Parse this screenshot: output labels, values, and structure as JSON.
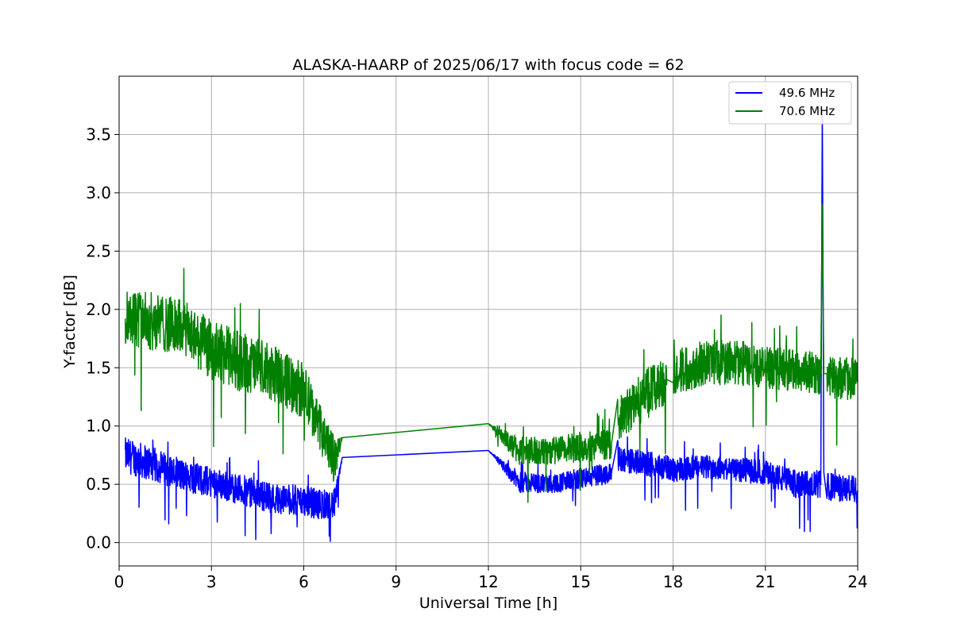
{
  "chart_data": {
    "type": "line",
    "title": "ALASKA-HAARP of 2025/06/17 with focus code = 62",
    "xlabel": "Universal Time [h]",
    "ylabel": "Y-factor [dB]",
    "xlim": [
      0,
      24
    ],
    "ylim": [
      -0.2,
      4.0
    ],
    "xticks": [
      0,
      3,
      6,
      9,
      12,
      15,
      18,
      21,
      24
    ],
    "xtick_labels": [
      "0",
      "3",
      "6",
      "9",
      "12",
      "15",
      "18",
      "21",
      "24"
    ],
    "yticks": [
      0.0,
      0.5,
      1.0,
      1.5,
      2.0,
      2.5,
      3.0,
      3.5
    ],
    "ytick_labels": [
      "0.0",
      "0.5",
      "1.0",
      "1.5",
      "2.0",
      "2.5",
      "3.0",
      "3.5"
    ],
    "grid": true,
    "legend_position": "top-right",
    "series": [
      {
        "name": "49.6 MHz",
        "color": "#0000ff",
        "x": [
          0.2,
          1,
          2,
          3,
          4,
          5,
          6,
          6.5,
          7.0,
          7.25,
          12.0,
          13,
          14,
          15,
          16,
          16.2,
          17,
          18,
          19,
          20,
          21,
          22,
          22.8,
          22.85,
          22.9,
          23,
          24
        ],
        "y": [
          0.75,
          0.68,
          0.58,
          0.52,
          0.45,
          0.38,
          0.36,
          0.33,
          0.33,
          0.73,
          0.79,
          0.52,
          0.5,
          0.55,
          0.6,
          0.72,
          0.68,
          0.63,
          0.65,
          0.63,
          0.6,
          0.5,
          0.5,
          3.7,
          0.6,
          0.48,
          0.45
        ],
        "noise": [
          0.15,
          0.15,
          0.14,
          0.13,
          0.13,
          0.13,
          0.13,
          0.13,
          0.13,
          0.0,
          0.0,
          0.09,
          0.08,
          0.09,
          0.09,
          0.1,
          0.11,
          0.11,
          0.1,
          0.1,
          0.11,
          0.12,
          0.12,
          0.0,
          0.12,
          0.12,
          0.12
        ]
      },
      {
        "name": "70.6 MHz",
        "color": "#008000",
        "x": [
          0.2,
          1,
          2,
          3,
          4,
          5,
          6,
          6.5,
          7.0,
          7.25,
          12.0,
          13,
          14,
          15,
          16,
          16.2,
          17,
          17.8,
          18,
          19,
          20,
          21,
          22,
          22.8,
          22.85,
          22.9,
          23,
          24
        ],
        "y": [
          1.95,
          1.9,
          1.85,
          1.65,
          1.55,
          1.45,
          1.3,
          1.0,
          0.7,
          0.9,
          1.02,
          0.78,
          0.78,
          0.82,
          0.85,
          1.05,
          1.25,
          1.4,
          1.45,
          1.55,
          1.55,
          1.5,
          1.48,
          1.45,
          2.9,
          1.45,
          1.42,
          1.4
        ],
        "noise": [
          0.25,
          0.25,
          0.24,
          0.26,
          0.26,
          0.24,
          0.24,
          0.2,
          0.2,
          0.0,
          0.0,
          0.13,
          0.12,
          0.13,
          0.13,
          0.18,
          0.22,
          0.2,
          0.2,
          0.2,
          0.2,
          0.18,
          0.18,
          0.18,
          0.0,
          0.18,
          0.18,
          0.18
        ]
      }
    ]
  }
}
